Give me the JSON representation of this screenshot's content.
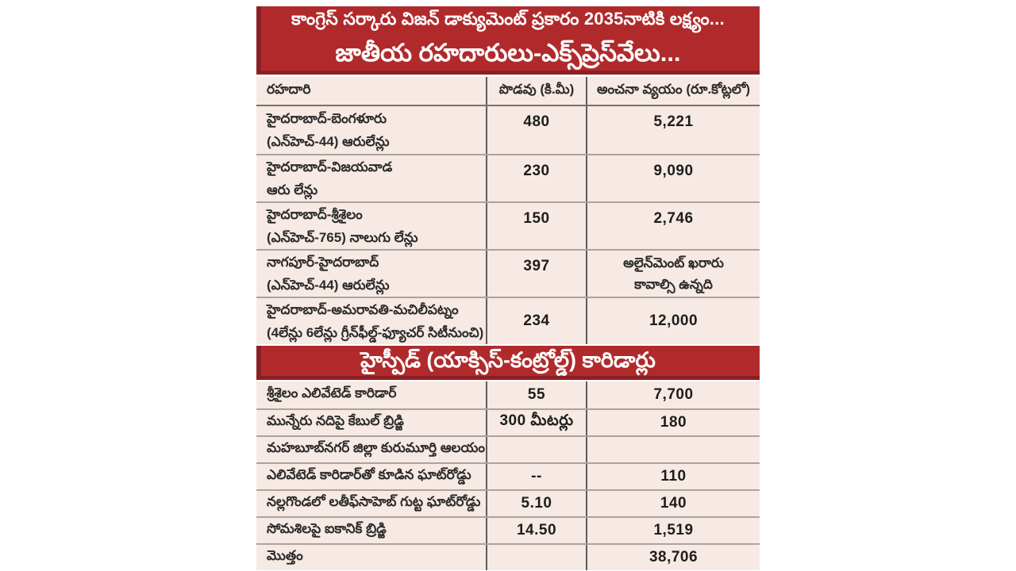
{
  "banner1": {
    "line1": "కాంగ్రెస్ సర్కారు విజన్ డాక్యుమెంట్ ప్రకారం 2035నాటికి లక్ష్యం...",
    "line2": "జాతీయ రహదారులు-ఎక్స్‌ప్రెస్‌వేలు..."
  },
  "table1": {
    "headers": [
      "రహదారి",
      "పొడవు (కి.మీ)",
      "అంచనా వ్యయం (రూ.కోట్లలో)"
    ],
    "rows": [
      {
        "road1": "హైదరాబాద్-బెంగళూరు",
        "road2": "(ఎన్‌హెచ్-44) ఆరులేన్లు",
        "length": "480",
        "cost1": "5,221",
        "cost2": ""
      },
      {
        "road1": "హైదరాబాద్-విజయవాడ",
        "road2": "ఆరు లేన్లు",
        "length": "230",
        "cost1": "9,090",
        "cost2": ""
      },
      {
        "road1": "హైదరాబాద్-శ్రీశైలం",
        "road2": "(ఎన్‌హెచ్-765) నాలుగు లేన్లు",
        "length": "150",
        "cost1": "2,746",
        "cost2": ""
      },
      {
        "road1": "నాగపూర్-హైదరాబాద్",
        "road2": "(ఎన్‌హెచ్-44) ఆరులేన్లు",
        "length": "397",
        "cost1": "అలైన్‌మెంట్ ఖరారు",
        "cost2": "కావాల్సి ఉన్నది"
      },
      {
        "road1": "హైదరాబాద్-అమరావతి-మచిలీపట్నం",
        "road2": "(4లేన్లు 6లేన్లు గ్రీన్‌ఫీల్డ్-ఫ్యూచర్ సిటీనుంచి)",
        "length": "234",
        "cost1": "12,000",
        "cost2": ""
      }
    ]
  },
  "banner2": {
    "title": "హైస్పీడ్ (యాక్సిస్-కంట్రోల్డ్) కారిడార్లు"
  },
  "table2": {
    "rows": [
      {
        "name": "శ్రీశైలం ఎలివేటెడ్ కారిడార్",
        "length": "55",
        "cost": "7,700"
      },
      {
        "name": "మున్నేరు నదిపై కేబుల్ బ్రిడ్జి",
        "length": "300 మీటర్లు",
        "cost": "180"
      },
      {
        "name": "మహబూబ్‌నగర్ జిల్లా కురుమూర్తి ఆలయం",
        "length": "",
        "cost": ""
      },
      {
        "name": "ఎలివేటెడ్ కారిడార్‌తో కూడిన ఘాట్‌రోడ్డు",
        "length": "--",
        "cost": "110"
      },
      {
        "name": "నల్లగొండలో లతీఫ్‌సాహెబ్ గుట్ట ఘాట్‌రోడ్డు",
        "length": "5.10",
        "cost": "140"
      },
      {
        "name": "సోమశిలపై ఐకానిక్ బ్రిడ్జి",
        "length": "14.50",
        "cost": "1,519"
      },
      {
        "name": "మొత్తం",
        "length": "",
        "cost": "38,706"
      }
    ]
  },
  "colors": {
    "banner_red": "#b02a2c",
    "banner_red_dark": "#8d1f22",
    "row_bg": "#f7e9e4",
    "vertical_border": "#605c59",
    "horizontal_border": "#aba39c",
    "text": "#2b2b2b"
  }
}
